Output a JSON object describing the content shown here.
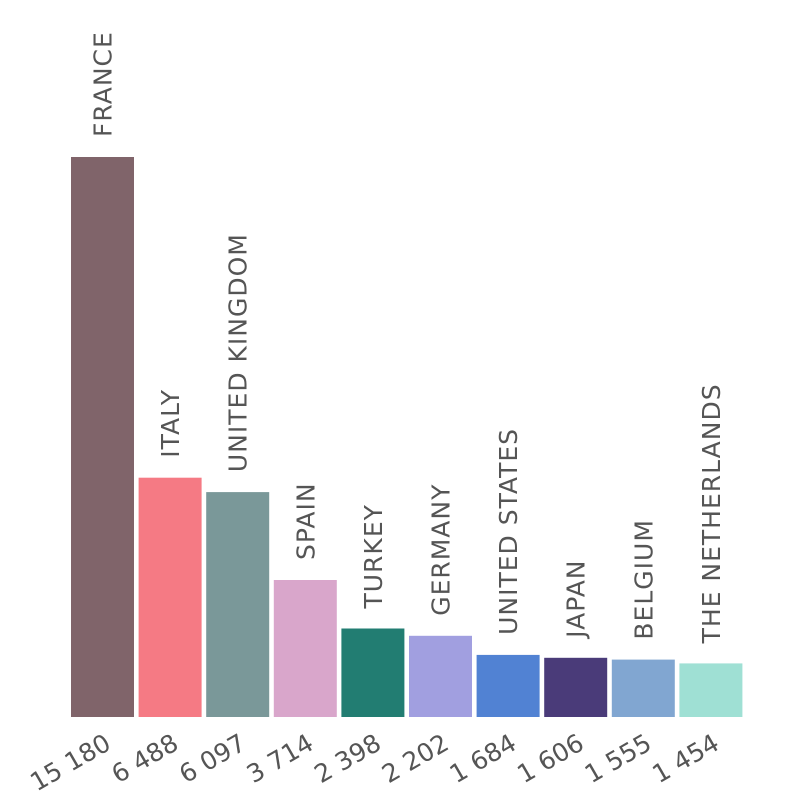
{
  "chart_data": {
    "type": "bar",
    "categories": [
      "FRANCE",
      "ITALY",
      "UNITED KINGDOM",
      "SPAIN",
      "TURKEY",
      "GERMANY",
      "UNITED STATES",
      "JAPAN",
      "BELGIUM",
      "THE NETHERLANDS"
    ],
    "values": [
      15180,
      6488,
      6097,
      3714,
      2398,
      2202,
      1684,
      1606,
      1555,
      1454
    ],
    "value_labels": [
      "15 180",
      "6 488",
      "6 097",
      "3 714",
      "2 398",
      "2 202",
      "1 684",
      "1 606",
      "1 555",
      "1 454"
    ],
    "colors": [
      "#80646a",
      "#f57a84",
      "#7a9899",
      "#d9a6cb",
      "#227d72",
      "#a19fe0",
      "#5182d3",
      "#4a3b79",
      "#81a6d1",
      "#9fe0d4"
    ],
    "title": "",
    "xlabel": "",
    "ylabel": "",
    "grid": false,
    "legend": "none"
  }
}
